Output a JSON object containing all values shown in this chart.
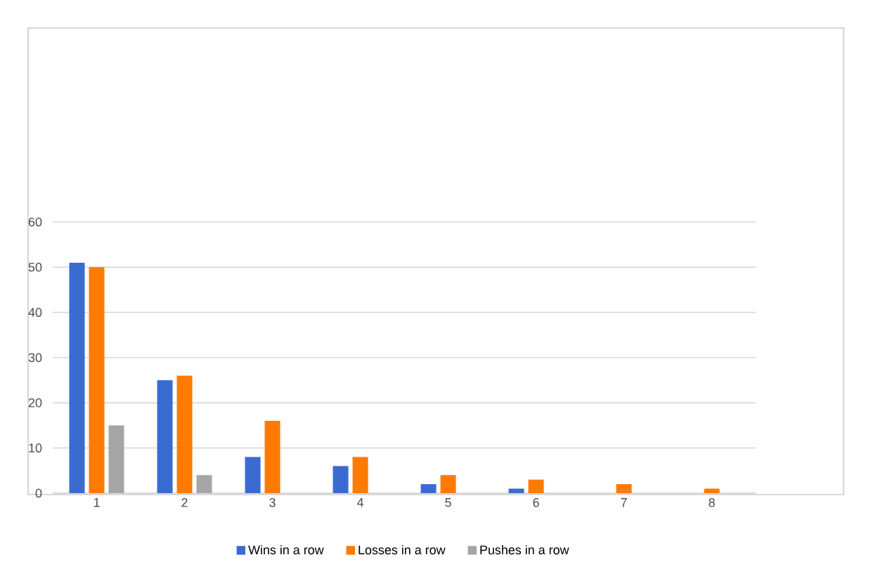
{
  "chart_data": {
    "type": "bar",
    "categories": [
      "1",
      "2",
      "3",
      "4",
      "5",
      "6",
      "7",
      "8"
    ],
    "series": [
      {
        "name": "Wins in a row",
        "color": "#3a6bd0",
        "values": [
          51,
          25,
          8,
          6,
          2,
          1,
          0,
          0
        ]
      },
      {
        "name": "Losses in a row",
        "color": "#ff7a00",
        "values": [
          50,
          26,
          16,
          8,
          4,
          3,
          2,
          1
        ]
      },
      {
        "name": "Pushes in a row",
        "color": "#a5a5a5",
        "values": [
          15,
          4,
          0,
          0,
          0,
          0,
          0,
          0
        ]
      }
    ],
    "ylim": [
      0,
      60
    ],
    "yticks": [
      0,
      10,
      20,
      30,
      40,
      50,
      60
    ],
    "grid": "y",
    "legend": "bottom"
  }
}
